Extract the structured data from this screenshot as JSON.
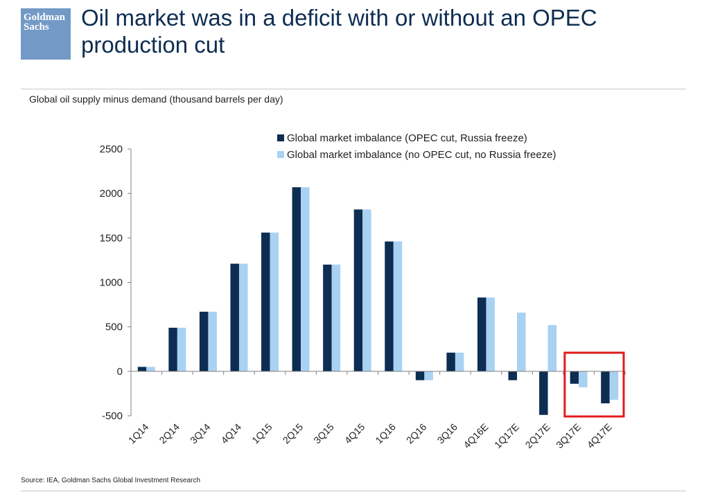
{
  "logo": {
    "line1": "Goldman",
    "line2": "Sachs"
  },
  "title": "Oil market was in a deficit with or without an OPEC production cut",
  "subtitle": "Global oil supply minus demand (thousand barrels per day)",
  "source": "Source: IEA, Goldman Sachs Global Investment Research",
  "colors": {
    "title": "#0d2d52",
    "logo_bg": "#7399c6",
    "highlight": "#e01b1b"
  },
  "chart_data": {
    "type": "bar",
    "categories": [
      "1Q14",
      "2Q14",
      "3Q14",
      "4Q14",
      "1Q15",
      "2Q15",
      "3Q15",
      "4Q15",
      "1Q16",
      "2Q16",
      "3Q16",
      "4Q16E",
      "1Q17E",
      "2Q17E",
      "3Q17E",
      "4Q17E"
    ],
    "series": [
      {
        "name": "Global market imbalance (OPEC cut, Russia freeze)",
        "color": "#0d2d52",
        "values": [
          50,
          490,
          670,
          1210,
          1560,
          2070,
          1200,
          1820,
          1460,
          -100,
          210,
          830,
          -100,
          -490,
          -140,
          -360
        ]
      },
      {
        "name": "Global market imbalance (no OPEC cut, no Russia freeze)",
        "color": "#a9d1f2",
        "values": [
          50,
          490,
          670,
          1210,
          1560,
          2070,
          1200,
          1820,
          1460,
          -100,
          210,
          830,
          660,
          520,
          -180,
          -320
        ]
      }
    ],
    "ylim": [
      -500,
      2500
    ],
    "yticks": [
      2500,
      2000,
      1500,
      1000,
      500,
      0,
      -500
    ],
    "xlabel": "",
    "ylabel": "",
    "legend": "top-right",
    "grid": false,
    "highlight": {
      "categories": [
        "3Q17E",
        "4Q17E"
      ],
      "color": "#e01b1b"
    }
  }
}
